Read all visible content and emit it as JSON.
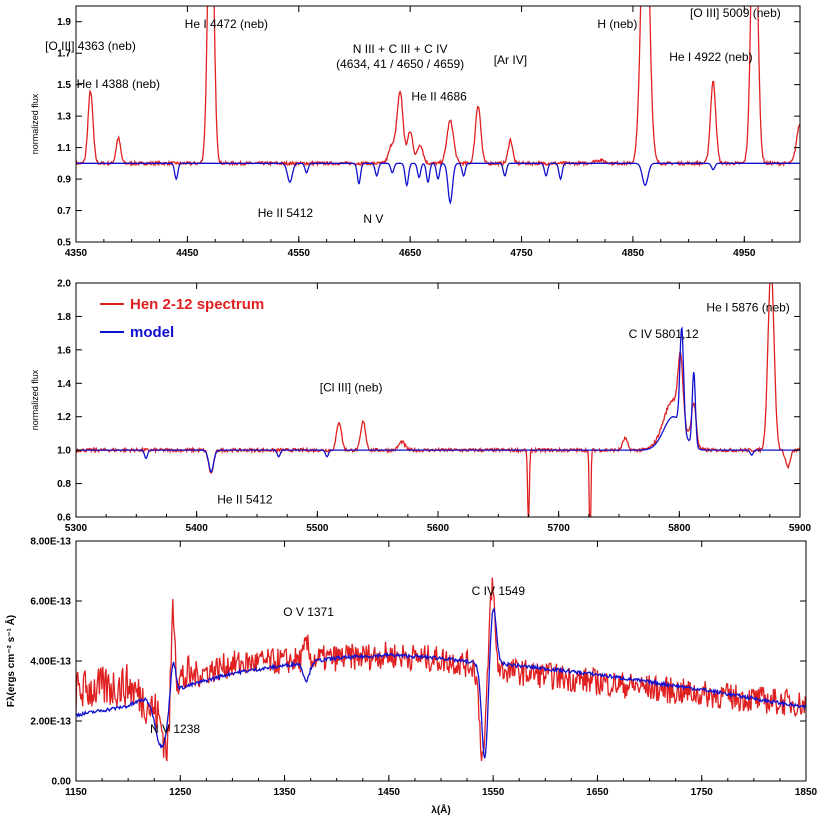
{
  "chart_data": [
    {
      "type": "line",
      "ylabel": "normalized flux",
      "xlim": [
        4350,
        5000
      ],
      "ylim": [
        0.5,
        2.0
      ],
      "xticks": [
        4350,
        4450,
        4550,
        4650,
        4750,
        4850,
        4950
      ],
      "yticks": [
        0.5,
        0.7,
        0.9,
        1.1,
        1.3,
        1.5,
        1.7,
        1.9
      ],
      "xtick_labels": [
        "4350",
        "4450",
        "4550",
        "4650",
        "4750",
        "4850",
        "4950"
      ],
      "ytick_labels": [
        "0.5",
        "0.7",
        "0.9",
        "1.1",
        "1.3",
        "1.5",
        "1.7",
        "1.9"
      ],
      "series": [
        {
          "name": "Hen 2-12 spectrum",
          "color": "#e02020",
          "continuum": 1.0,
          "features": [
            [
              4363,
              0.46,
              2.2
            ],
            [
              4388,
              0.16,
              2
            ],
            [
              4471,
              2.0,
              2.6
            ],
            [
              4634,
              0.12,
              3
            ],
            [
              4641,
              0.45,
              2.6
            ],
            [
              4650,
              0.2,
              2.5
            ],
            [
              4659,
              0.12,
              2.5
            ],
            [
              4686,
              0.27,
              3
            ],
            [
              4711,
              0.37,
              2.4
            ],
            [
              4740,
              0.15,
              2
            ],
            [
              4861,
              2.0,
              3.5
            ],
            [
              4922,
              0.52,
              2.4
            ],
            [
              4959,
              2.0,
              2.8
            ],
            [
              5000,
              0.25,
              3
            ],
            [
              4820,
              0.02,
              5
            ]
          ]
        },
        {
          "name": "model",
          "color": "#1010d0",
          "continuum": 1.0,
          "features": [
            [
              4440,
              -0.1,
              1.4
            ],
            [
              4542,
              -0.12,
              2.2
            ],
            [
              4557,
              -0.06,
              1.4
            ],
            [
              4604,
              -0.13,
              1.4
            ],
            [
              4620,
              -0.08,
              1.4
            ],
            [
              4634,
              -0.06,
              1.4
            ],
            [
              4647,
              -0.14,
              1.5
            ],
            [
              4658,
              -0.09,
              1.4
            ],
            [
              4666,
              -0.12,
              1.4
            ],
            [
              4675,
              -0.1,
              1.4
            ],
            [
              4686,
              -0.25,
              2
            ],
            [
              4698,
              -0.08,
              1.4
            ],
            [
              4735,
              -0.08,
              1.4
            ],
            [
              4772,
              -0.08,
              1.4
            ],
            [
              4785,
              -0.1,
              1.4
            ],
            [
              4861,
              -0.14,
              2.5
            ],
            [
              4922,
              -0.04,
              1.5
            ]
          ]
        }
      ],
      "annotations": [
        {
          "lines": [
            "[O III] 4363 (neb)"
          ],
          "x": 4363,
          "y": 1.72
        },
        {
          "lines": [
            "He I 4388 (neb)"
          ],
          "x": 4388,
          "y": 1.48
        },
        {
          "lines": [
            "He I 4472 (neb)"
          ],
          "x": 4485,
          "y": 1.86
        },
        {
          "lines": [
            "N III + C III + C IV",
            "(4634, 41 / 4650 / 4659)"
          ],
          "x": 4641,
          "y": 1.7
        },
        {
          "lines": [
            "He II 4686"
          ],
          "x": 4676,
          "y": 1.4
        },
        {
          "lines": [
            "[Ar IV]"
          ],
          "x": 4740,
          "y": 1.63
        },
        {
          "lines": [
            "H (neb)"
          ],
          "x": 4836,
          "y": 1.86
        },
        {
          "lines": [
            "[O III] 5009 (neb)"
          ],
          "x": 4942,
          "y": 1.93
        },
        {
          "lines": [
            "He I 4922 (neb)"
          ],
          "x": 4920,
          "y": 1.65
        },
        {
          "lines": [
            "He II 5412"
          ],
          "x": 4538,
          "y": 0.66
        },
        {
          "lines": [
            "N V"
          ],
          "x": 4617,
          "y": 0.62
        }
      ]
    },
    {
      "type": "line",
      "ylabel": "normalized flux",
      "xlim": [
        5300,
        5900
      ],
      "ylim": [
        0.6,
        2.0
      ],
      "xticks": [
        5300,
        5400,
        5500,
        5600,
        5700,
        5800,
        5900
      ],
      "yticks": [
        0.6,
        0.8,
        1.0,
        1.2,
        1.4,
        1.6,
        1.8,
        2.0
      ],
      "xtick_labels": [
        "5300",
        "5400",
        "5500",
        "5600",
        "5700",
        "5800",
        "5900"
      ],
      "ytick_labels": [
        "0.6",
        "0.8",
        "1.0",
        "1.2",
        "1.4",
        "1.6",
        "1.8",
        "2.0"
      ],
      "legend": [
        "Hen 2-12 spectrum",
        "model"
      ],
      "series": [
        {
          "name": "Hen 2-12 spectrum",
          "color": "#e02020",
          "continuum": 1.0,
          "features": [
            [
              5412,
              -0.14,
              2
            ],
            [
              5518,
              0.17,
              2
            ],
            [
              5538,
              0.17,
              2
            ],
            [
              5570,
              0.05,
              2.5
            ],
            [
              5675,
              -0.45,
              0.7
            ],
            [
              5726,
              -0.6,
              0.6
            ],
            [
              5755,
              0.07,
              2
            ],
            [
              5795,
              0.3,
              8
            ],
            [
              5801,
              0.35,
              2
            ],
            [
              5812,
              0.25,
              2
            ],
            [
              5876,
              1.1,
              2.5
            ],
            [
              5890,
              -0.1,
              2
            ]
          ]
        },
        {
          "name": "model",
          "color": "#1010d0",
          "continuum": 1.0,
          "features": [
            [
              5358,
              -0.05,
              1.2
            ],
            [
              5412,
              -0.13,
              2
            ],
            [
              5468,
              -0.04,
              1.2
            ],
            [
              5508,
              -0.04,
              1.2
            ],
            [
              5795,
              0.2,
              8
            ],
            [
              5802,
              0.6,
              1.5
            ],
            [
              5812,
              0.45,
              1.3
            ],
            [
              5860,
              -0.03,
              1.2
            ]
          ]
        }
      ],
      "annotations": [
        {
          "lines": [
            "C IV 5801,12"
          ],
          "x": 5787,
          "y": 1.67
        },
        {
          "lines": [
            "He I 5876 (neb)"
          ],
          "x": 5857,
          "y": 1.83
        },
        {
          "lines": [
            "[Cl III] (neb)"
          ],
          "x": 5528,
          "y": 1.35
        },
        {
          "lines": [
            "He II 5412"
          ],
          "x": 5440,
          "y": 0.68
        }
      ]
    },
    {
      "type": "line",
      "xlabel": "λ(Å)",
      "ylabel": "Fλ(ergs cm⁻² s⁻¹ Å)",
      "xlim": [
        1150,
        1850
      ],
      "ylim": [
        0,
        8e-13
      ],
      "xticks": [
        1150,
        1250,
        1350,
        1450,
        1550,
        1650,
        1750,
        1850
      ],
      "yticks": [
        0,
        2e-13,
        4e-13,
        6e-13,
        8e-13
      ],
      "xtick_labels": [
        "1150",
        "1250",
        "1350",
        "1450",
        "1550",
        "1650",
        "1750",
        "1850"
      ],
      "ytick_labels": [
        "0.00",
        "2.00E-13",
        "4.00E-13",
        "6.00E-13",
        "8.00E-13"
      ],
      "series": [
        {
          "name": "Hen 2-12 spectrum",
          "color": "#e02020",
          "continuum_points": [
            [
              1150,
              3.0
            ],
            [
              1200,
              3.2
            ],
            [
              1230,
              2.2
            ],
            [
              1250,
              3.4
            ],
            [
              1300,
              3.9
            ],
            [
              1400,
              4.1
            ],
            [
              1450,
              4.2
            ],
            [
              1500,
              4.05
            ],
            [
              1540,
              3.8
            ],
            [
              1560,
              3.7
            ],
            [
              1650,
              3.3
            ],
            [
              1750,
              2.9
            ],
            [
              1850,
              2.55
            ]
          ],
          "features": [
            [
              1238,
              -1.6,
              4
            ],
            [
              1243,
              3.5,
              2
            ],
            [
              1371,
              0.5,
              2
            ],
            [
              1540,
              -3.0,
              3
            ],
            [
              1549,
              2.8,
              2.5
            ]
          ]
        },
        {
          "name": "model",
          "color": "#1010d0",
          "continuum_points": [
            [
              1150,
              2.2
            ],
            [
              1200,
              2.5
            ],
            [
              1225,
              2.9
            ],
            [
              1250,
              3.1
            ],
            [
              1300,
              3.6
            ],
            [
              1400,
              4.1
            ],
            [
              1450,
              4.2
            ],
            [
              1500,
              4.1
            ],
            [
              1540,
              3.9
            ],
            [
              1560,
              3.9
            ],
            [
              1650,
              3.55
            ],
            [
              1750,
              3.05
            ],
            [
              1850,
              2.45
            ]
          ],
          "features": [
            [
              1232,
              -1.8,
              6
            ],
            [
              1243,
              1.2,
              2.5
            ],
            [
              1371,
              -0.6,
              3
            ],
            [
              1542,
              -3.2,
              3
            ],
            [
              1550,
              1.9,
              3
            ]
          ]
        }
      ],
      "annotations": [
        {
          "lines": [
            "O V 1371"
          ],
          "x": 1373,
          "y": 5.5
        },
        {
          "lines": [
            "C IV 1549"
          ],
          "x": 1555,
          "y": 6.2
        },
        {
          "lines": [
            "N V 1238"
          ],
          "x": 1245,
          "y": 1.6
        }
      ]
    }
  ],
  "legend_labels": {
    "spectrum": "Hen 2-12 spectrum",
    "model": "model"
  },
  "colors": {
    "spectrum": "#e02020",
    "model": "#1010d0"
  }
}
